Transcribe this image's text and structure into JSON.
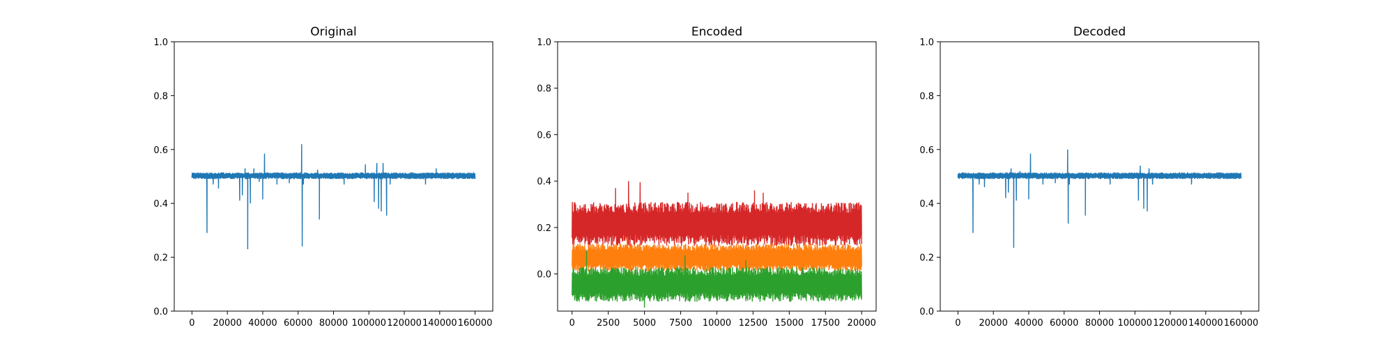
{
  "chart_data": [
    {
      "type": "line",
      "title": "Original",
      "xlim": [
        -10000,
        170000
      ],
      "ylim": [
        0.0,
        1.0
      ],
      "xticks": [
        0,
        20000,
        40000,
        60000,
        80000,
        100000,
        120000,
        140000,
        160000
      ],
      "yticks": [
        0.0,
        0.2,
        0.4,
        0.6,
        0.8,
        1.0
      ],
      "xticklabels": [
        "0",
        "20000",
        "40000",
        "60000",
        "80000",
        "100000",
        "120000",
        "140000",
        "160000"
      ],
      "yticklabels": [
        "0.0",
        "0.2",
        "0.4",
        "0.6",
        "0.8",
        "1.0"
      ],
      "grid": false,
      "series": [
        {
          "color": "#1f77b4",
          "x_range": [
            0,
            160000
          ],
          "band": [
            0.49,
            0.515
          ],
          "spikes": [
            [
              8500,
              0.29
            ],
            [
              12000,
              0.47
            ],
            [
              15000,
              0.455
            ],
            [
              27000,
              0.41
            ],
            [
              28500,
              0.43
            ],
            [
              30000,
              0.53
            ],
            [
              31500,
              0.23
            ],
            [
              33000,
              0.4
            ],
            [
              35000,
              0.53
            ],
            [
              38000,
              0.48
            ],
            [
              40000,
              0.415
            ],
            [
              41000,
              0.585
            ],
            [
              48000,
              0.47
            ],
            [
              55000,
              0.475
            ],
            [
              62000,
              0.62
            ],
            [
              62300,
              0.24
            ],
            [
              63000,
              0.47
            ],
            [
              71000,
              0.525
            ],
            [
              72000,
              0.34
            ],
            [
              86000,
              0.47
            ],
            [
              98000,
              0.545
            ],
            [
              103000,
              0.405
            ],
            [
              104500,
              0.55
            ],
            [
              105500,
              0.38
            ],
            [
              107000,
              0.37
            ],
            [
              108000,
              0.55
            ],
            [
              110000,
              0.355
            ],
            [
              112000,
              0.47
            ],
            [
              132000,
              0.47
            ],
            [
              138000,
              0.53
            ]
          ]
        }
      ]
    },
    {
      "type": "line",
      "title": "Encoded",
      "xlim": [
        -1000,
        21000
      ],
      "ylim": [
        -0.16,
        1.0
      ],
      "xticks": [
        0,
        2500,
        5000,
        7500,
        10000,
        12500,
        15000,
        17500,
        20000
      ],
      "yticks": [
        0.0,
        0.2,
        0.4,
        0.6,
        0.8,
        1.0
      ],
      "xticklabels": [
        "0",
        "2500",
        "5000",
        "7500",
        "10000",
        "12500",
        "15000",
        "17500",
        "20000"
      ],
      "yticklabels": [
        "0.0",
        "0.2",
        "0.4",
        "0.6",
        "0.8",
        "1.0"
      ],
      "grid": false,
      "series": [
        {
          "color": "#d62728",
          "x_range": [
            0,
            20000
          ],
          "band": [
            0.12,
            0.31
          ],
          "spikes": [
            [
              3000,
              0.37
            ],
            [
              3900,
              0.4
            ],
            [
              4700,
              0.395
            ],
            [
              8000,
              0.35
            ],
            [
              12600,
              0.36
            ],
            [
              13200,
              0.35
            ],
            [
              4000,
              0.0
            ]
          ]
        },
        {
          "color": "#ff7f0e",
          "x_range": [
            0,
            20000
          ],
          "band": [
            0.01,
            0.13
          ],
          "spikes": [
            [
              4000,
              0.0
            ],
            [
              3800,
              0.16
            ]
          ]
        },
        {
          "color": "#2ca02c",
          "x_range": [
            0,
            20000
          ],
          "band": [
            -0.12,
            0.03
          ],
          "spikes": [
            [
              1000,
              0.1
            ],
            [
              5000,
              -0.145
            ],
            [
              7800,
              0.08
            ],
            [
              12000,
              0.06
            ]
          ]
        }
      ]
    },
    {
      "type": "line",
      "title": "Decoded",
      "xlim": [
        -10000,
        170000
      ],
      "ylim": [
        0.0,
        1.0
      ],
      "xticks": [
        0,
        20000,
        40000,
        60000,
        80000,
        100000,
        120000,
        140000,
        160000
      ],
      "yticks": [
        0.0,
        0.2,
        0.4,
        0.6,
        0.8,
        1.0
      ],
      "xticklabels": [
        "0",
        "20000",
        "40000",
        "60000",
        "80000",
        "100000",
        "120000",
        "140000",
        "160000"
      ],
      "yticklabels": [
        "0.0",
        "0.2",
        "0.4",
        "0.6",
        "0.8",
        "1.0"
      ],
      "grid": false,
      "series": [
        {
          "color": "#1f77b4",
          "x_range": [
            0,
            160000
          ],
          "band": [
            0.49,
            0.515
          ],
          "spikes": [
            [
              8500,
              0.29
            ],
            [
              12000,
              0.47
            ],
            [
              15000,
              0.46
            ],
            [
              27000,
              0.42
            ],
            [
              28500,
              0.44
            ],
            [
              30000,
              0.53
            ],
            [
              31500,
              0.235
            ],
            [
              33000,
              0.41
            ],
            [
              35000,
              0.52
            ],
            [
              40000,
              0.415
            ],
            [
              41000,
              0.585
            ],
            [
              48000,
              0.47
            ],
            [
              55000,
              0.475
            ],
            [
              62000,
              0.6
            ],
            [
              62300,
              0.325
            ],
            [
              63000,
              0.47
            ],
            [
              72000,
              0.355
            ],
            [
              86000,
              0.47
            ],
            [
              102000,
              0.41
            ],
            [
              103000,
              0.54
            ],
            [
              105000,
              0.38
            ],
            [
              107000,
              0.37
            ],
            [
              108000,
              0.53
            ],
            [
              110000,
              0.47
            ],
            [
              132000,
              0.47
            ]
          ]
        }
      ]
    }
  ]
}
